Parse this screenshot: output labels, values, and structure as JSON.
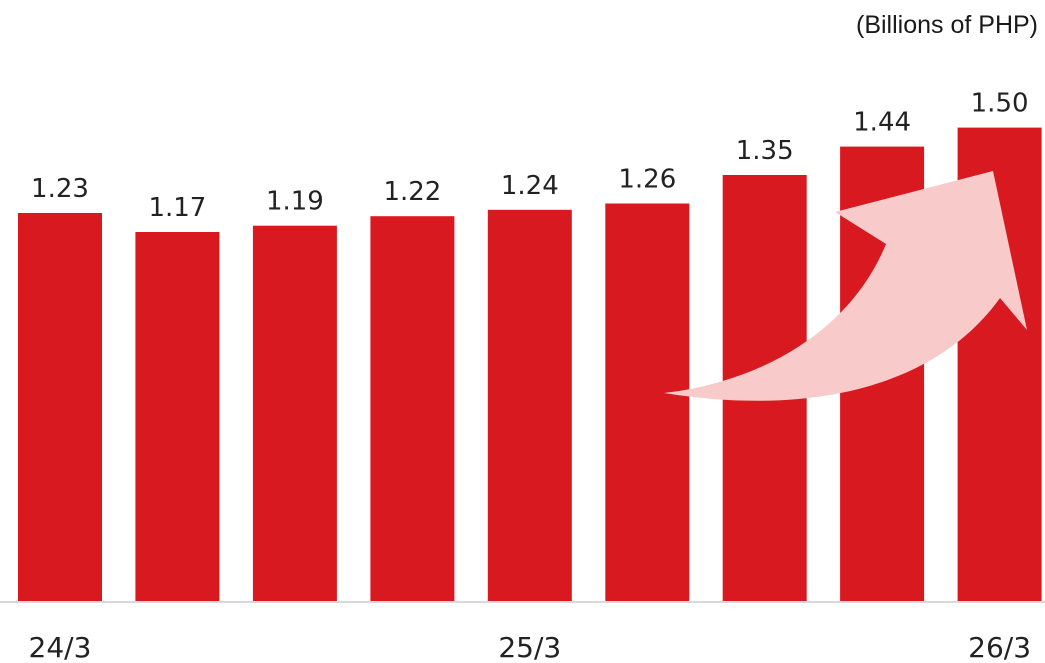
{
  "chart_data": {
    "type": "bar",
    "unit_label": "(Billions of PHP)",
    "categories": [
      "24/3",
      "",
      "",
      "",
      "25/3",
      "",
      "",
      "",
      "26/3"
    ],
    "values": [
      1.23,
      1.17,
      1.19,
      1.22,
      1.24,
      1.26,
      1.35,
      1.44,
      1.5
    ],
    "value_labels": [
      "1.23",
      "1.17",
      "1.19",
      "1.22",
      "1.24",
      "1.26",
      "1.35",
      "1.44",
      "1.50"
    ],
    "x_tick_labels": [
      "24/3",
      "25/3",
      "26/3"
    ],
    "title": "",
    "xlabel": "",
    "ylabel": "",
    "ylim": [
      0,
      1.6
    ],
    "grid": false,
    "legend": "none",
    "bar_color": "#d81920",
    "arrow_color": "#f9caca",
    "axis_color": "#d9d9d9"
  }
}
